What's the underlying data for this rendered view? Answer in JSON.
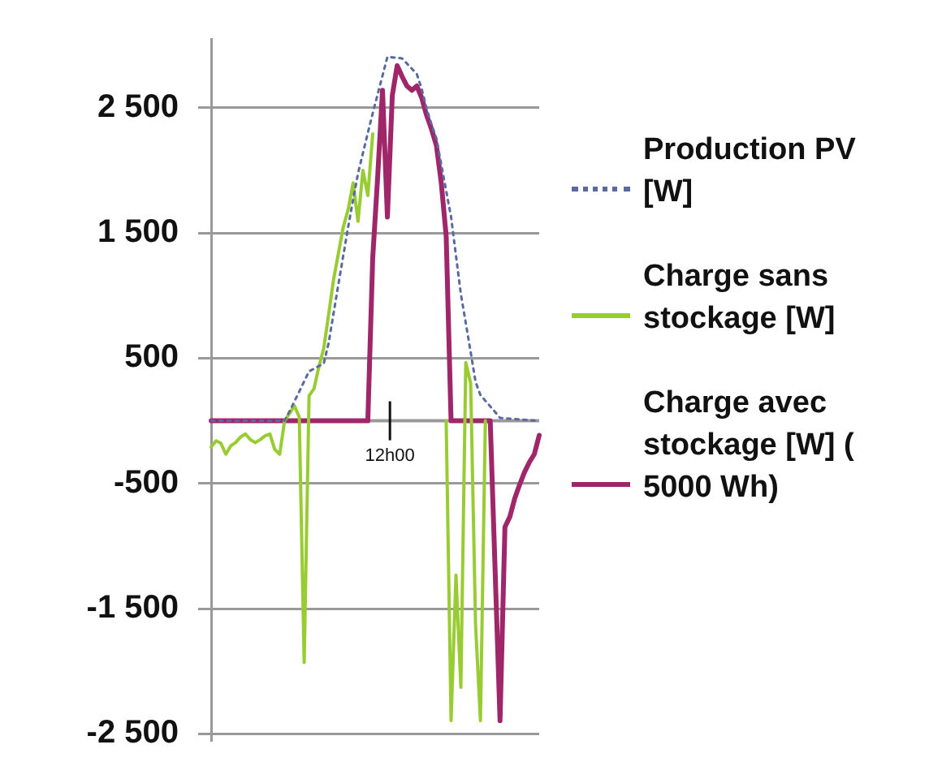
{
  "chart_data": {
    "type": "line",
    "annotations": [
      "12h00"
    ],
    "ylim": [
      -2550,
      3050
    ],
    "yticks": [
      {
        "value": 2500,
        "label": "2 500"
      },
      {
        "value": 1500,
        "label": "1 500"
      },
      {
        "value": 500,
        "label": "500"
      },
      {
        "value": -500,
        "label": "-500"
      },
      {
        "value": -1500,
        "label": "-1 500"
      },
      {
        "value": -2500,
        "label": "-2 500"
      }
    ],
    "grid": "y",
    "legend": "right",
    "marker": "none",
    "categories": [
      null,
      null,
      null,
      null,
      null,
      null,
      null,
      null,
      null,
      null,
      null,
      null,
      null,
      null,
      null,
      null,
      null,
      null,
      null,
      null,
      null,
      null,
      null,
      null,
      null,
      null,
      null,
      null,
      null,
      null,
      null,
      null,
      null,
      null,
      null,
      null,
      null,
      null,
      null,
      null,
      null,
      null,
      null,
      null,
      null,
      null,
      null,
      null,
      null,
      null,
      null,
      null,
      null,
      null,
      null,
      null,
      null,
      null,
      null,
      null,
      null,
      null,
      null,
      null,
      null,
      null,
      null,
      null
    ],
    "series": [
      {
        "name": "Production PV [W]",
        "color": "#5a6aa0",
        "line_style": "dotted",
        "values": [
          0,
          0,
          0,
          0,
          0,
          0,
          0,
          0,
          0,
          0,
          0,
          0,
          0,
          0,
          0,
          0,
          75,
          154,
          234,
          315,
          395,
          416,
          437,
          458,
          622,
          858,
          1093,
          1322,
          1552,
          1768,
          1977,
          2138,
          2300,
          2457,
          2607,
          2757,
          2907,
          2903,
          2899,
          2895,
          2853,
          2812,
          2770,
          2651,
          2494,
          2368,
          2256,
          2047,
          1837,
          1628,
          1320,
          1012,
          782,
          549,
          312,
          205,
          160,
          115,
          70,
          23,
          20,
          17,
          14,
          11,
          8,
          5,
          2,
          0
        ]
      },
      {
        "name": "Charge sans stockage [W]",
        "color": "#99cc33",
        "line_style": "solid",
        "values": [
          -209,
          -160,
          -180,
          -267,
          -200,
          -174,
          -130,
          -105,
          -150,
          -174,
          -151,
          -120,
          -105,
          -230,
          -267,
          0,
          58,
          120,
          30,
          -1930,
          200,
          256,
          430,
          580,
          850,
          1128,
          1340,
          1550,
          1690,
          1900,
          1593,
          2000,
          1800,
          2291,
          null,
          null,
          null,
          null,
          null,
          null,
          null,
          null,
          null,
          null,
          null,
          null,
          null,
          null,
          0,
          -2395,
          -1233,
          -2128,
          465,
          300,
          -1628,
          -2395,
          0,
          null,
          null,
          null,
          null,
          null,
          null,
          null,
          null,
          null,
          null,
          null
        ]
      },
      {
        "name": "Charge avec stockage [W] ( 5000 Wh)",
        "color": "#a0266a",
        "line_style": "solid",
        "values": [
          0,
          0,
          0,
          0,
          0,
          0,
          0,
          0,
          0,
          0,
          0,
          0,
          0,
          0,
          0,
          0,
          0,
          0,
          0,
          0,
          0,
          0,
          0,
          0,
          0,
          0,
          0,
          0,
          0,
          0,
          0,
          0,
          0,
          1300,
          1942,
          2640,
          1628,
          2600,
          2837,
          2750,
          2674,
          2640,
          2674,
          2580,
          2440,
          2330,
          2200,
          1900,
          1477,
          0,
          0,
          0,
          0,
          0,
          0,
          0,
          0,
          0,
          -1200,
          -2395,
          -849,
          -767,
          -620,
          -510,
          -410,
          -330,
          -267,
          -116
        ]
      }
    ]
  }
}
